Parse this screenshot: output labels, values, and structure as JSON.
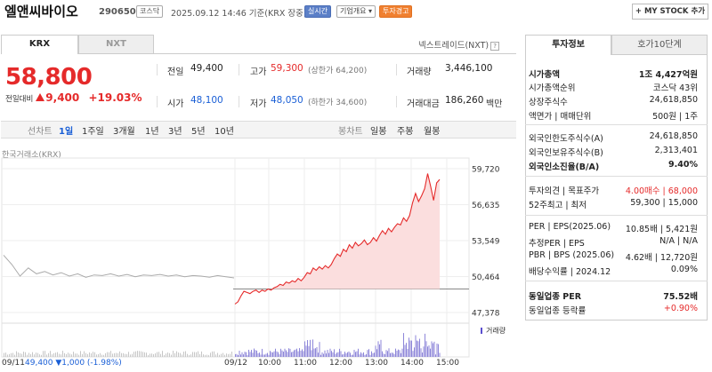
{
  "header": {
    "name": "엘앤씨바이오",
    "code": "290650",
    "market_badge": "코스닥",
    "datetime": "2025.09.12  14:46  기준(KRX 장중)",
    "realtime_badge": "실시간",
    "corp_badge": "기업개요 ▾",
    "warn_badge": "투자경고",
    "mystock_button": "+ MY STOCK 추가"
  },
  "tabs": {
    "krx": "KRX",
    "nxt": "NXT",
    "nextrade": "넥스트레이드(NXT)"
  },
  "price": {
    "current": "58,800",
    "diff_label": "전일대비",
    "diff_value": "9,400",
    "diff_pct": "+19.03%"
  },
  "quote": {
    "prev_label": "전일",
    "prev": "49,400",
    "high_label": "고가",
    "high": "59,300",
    "upper_limit": "(상한가 64,200)",
    "volume_label": "거래량",
    "volume": "3,446,100",
    "open_label": "시가",
    "open": "48,100",
    "low_label": "저가",
    "low": "48,050",
    "lower_limit": "(하한가 34,600)",
    "amount_label": "거래대금",
    "amount": "186,260",
    "amount_unit": "백만"
  },
  "periods": {
    "line_chart": "선차트",
    "items": [
      "1일",
      "1주일",
      "3개월",
      "1년",
      "3년",
      "5년",
      "10년"
    ],
    "selected": "1일",
    "candle_chart": "봉차트",
    "candle_items": [
      "일봉",
      "주봉",
      "월봉"
    ]
  },
  "chart_label": "한국거래소(KRX)",
  "chart_data": {
    "type": "line",
    "ylim": [
      47378,
      59720
    ],
    "yticks": [
      "59,720",
      "56,635",
      "53,549",
      "50,464",
      "47,378"
    ],
    "xticks": [
      "09/12",
      "10:00",
      "11:00",
      "12:00",
      "13:00",
      "14:00",
      "15:00"
    ],
    "reference": 49400,
    "volume_label": "거래량",
    "prev_day_label": "09/11",
    "prev_close": "49,400",
    "prev_change": "▼1,000",
    "prev_pct": "(-1.98%)",
    "series": [
      {
        "values": [
          48100,
          48300,
          48800,
          49200,
          49100,
          49000,
          49200,
          49300,
          49100,
          49300,
          49200,
          49400,
          49300,
          49500,
          49600,
          49800,
          49700,
          50000,
          49900,
          50100,
          50000,
          50300,
          50100,
          50400,
          50800,
          50700,
          51200,
          51000,
          51300,
          51100,
          51400,
          51200,
          51500,
          52000,
          52400,
          52200,
          52800,
          52600,
          53200,
          52900,
          53400,
          53100,
          53300,
          53600,
          53200,
          53400,
          53800,
          53500,
          54000,
          54400,
          54100,
          54600,
          54300,
          54700,
          55000,
          54900,
          55500,
          55200,
          55700,
          56800,
          57600,
          56900,
          57400,
          58000,
          59300,
          58200,
          57000,
          58500,
          58800
        ]
      }
    ]
  },
  "invest": {
    "tab_invest": "투자정보",
    "tab_order": "호가10단계",
    "rows": [
      {
        "k": "시가총액",
        "v": "1조 4,427억원",
        "bold": true
      },
      {
        "k": "시가총액순위",
        "v": "코스닥 43위"
      },
      {
        "k": "상장주식수",
        "v": "24,618,850"
      },
      {
        "k": "액면가 | 매매단위",
        "v": "500원 | 1주"
      },
      {
        "k": "외국인한도주식수(A)",
        "v": "24,618,850"
      },
      {
        "k": "외국인보유주식수(B)",
        "v": "2,313,401"
      },
      {
        "k": "외국인소진율(B/A)",
        "v": "9.40%",
        "bold": true
      },
      {
        "k": "투자의견 | 목표주가",
        "v": "4.00매수 | 68,000"
      },
      {
        "k": "52주최고 | 최저",
        "v": "59,300 | 15,000"
      },
      {
        "k": "PER | EPS(2025.06)",
        "v": "10.85배 | 5,421원"
      },
      {
        "k": "추정PER | EPS",
        "v": "N/A | N/A"
      },
      {
        "k": "PBR | BPS (2025.06)",
        "v": "4.62배 | 12,720원"
      },
      {
        "k": "배당수익률 | 2024.12",
        "v": "0.09%"
      },
      {
        "k": "동일업종 PER",
        "v": "75.52배",
        "bold": true
      },
      {
        "k": "동일업종 등락률",
        "v": "+0.90%"
      }
    ]
  }
}
